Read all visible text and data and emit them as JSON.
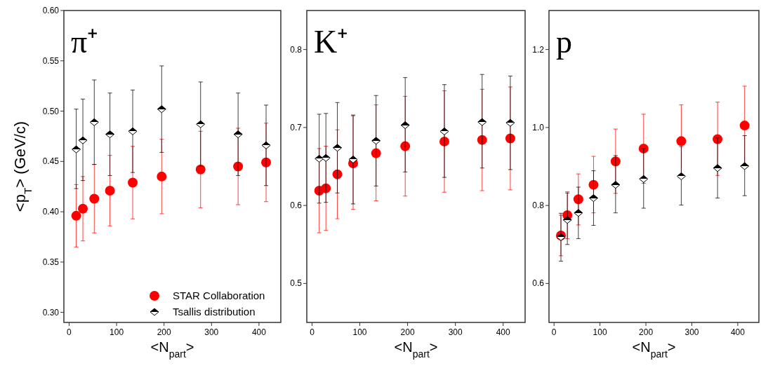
{
  "chart_data": [
    {
      "type": "scatter",
      "title": "π⁺",
      "xlabel": "<N$_{part}$>",
      "ylabel": "<p$_{T}$> (GeV/c)",
      "xlim": [
        -11,
        446
      ],
      "xticks": [
        0,
        100,
        200,
        300,
        400
      ],
      "ylim": [
        0.29,
        0.6
      ],
      "yticks": [
        {
          "value": 0.3,
          "label": "0.30"
        },
        {
          "value": 0.35,
          "label": "0.35"
        },
        {
          "value": 0.4,
          "label": "0.40"
        },
        {
          "value": 0.45,
          "label": "0.45"
        },
        {
          "value": 0.5,
          "label": "0.50"
        },
        {
          "value": 0.55,
          "label": "0.55"
        },
        {
          "value": 0.6,
          "label": "0.60"
        }
      ],
      "grid": false,
      "legend": "bottom right",
      "x": [
        15,
        29,
        53,
        86,
        134,
        195,
        277,
        356,
        415
      ],
      "series": [
        {
          "name": "STAR Collaboration",
          "color": "#ff0000",
          "marker": "circle",
          "values": [
            0.396,
            0.403,
            0.413,
            0.421,
            0.429,
            0.435,
            0.442,
            0.445,
            0.449
          ],
          "errors": [
            [
              0.365,
              0.427
            ],
            [
              0.371,
              0.435
            ],
            [
              0.379,
              0.447
            ],
            [
              0.386,
              0.456
            ],
            [
              0.393,
              0.465
            ],
            [
              0.398,
              0.472
            ],
            [
              0.404,
              0.48
            ],
            [
              0.407,
              0.483
            ],
            [
              0.41,
              0.488
            ]
          ]
        },
        {
          "name": "Tsallis distribution",
          "color": "#000000",
          "marker": "diamond",
          "values": [
            0.462,
            0.471,
            0.489,
            0.477,
            0.48,
            0.502,
            0.487,
            0.477,
            0.466
          ],
          "errors": [
            [
              0.423,
              0.502
            ],
            [
              0.431,
              0.512
            ],
            [
              0.447,
              0.531
            ],
            [
              0.436,
              0.518
            ],
            [
              0.439,
              0.521
            ],
            [
              0.459,
              0.545
            ],
            [
              0.445,
              0.529
            ],
            [
              0.436,
              0.518
            ],
            [
              0.426,
              0.506
            ]
          ]
        }
      ]
    },
    {
      "type": "scatter",
      "title": "K⁺",
      "xlabel": "<N$_{part}$>",
      "xlim": [
        -11,
        446
      ],
      "xticks": [
        0,
        100,
        200,
        300,
        400
      ],
      "ylim": [
        0.45,
        0.85
      ],
      "yticks": [
        0.5,
        0.6,
        0.7,
        0.8
      ],
      "grid": false,
      "legend": false,
      "x": [
        15,
        29,
        53,
        86,
        134,
        195,
        277,
        356,
        415
      ],
      "series": [
        {
          "color": "#ff0000",
          "marker": "circle",
          "values": [
            0.619,
            0.622,
            0.64,
            0.654,
            0.667,
            0.676,
            0.682,
            0.684,
            0.686
          ],
          "errors": [
            [
              0.565,
              0.673
            ],
            [
              0.568,
              0.676
            ],
            [
              0.583,
              0.697
            ],
            [
              0.595,
              0.715
            ],
            [
              0.606,
              0.729
            ],
            [
              0.612,
              0.74
            ],
            [
              0.617,
              0.747
            ],
            [
              0.619,
              0.749
            ],
            [
              0.62,
              0.752
            ]
          ]
        },
        {
          "color": "#000000",
          "marker": "diamond",
          "values": [
            0.66,
            0.661,
            0.674,
            0.659,
            0.683,
            0.703,
            0.695,
            0.707,
            0.706
          ],
          "errors": [
            [
              0.603,
              0.717
            ],
            [
              0.604,
              0.718
            ],
            [
              0.616,
              0.732
            ],
            [
              0.602,
              0.716
            ],
            [
              0.625,
              0.741
            ],
            [
              0.643,
              0.764
            ],
            [
              0.636,
              0.755
            ],
            [
              0.648,
              0.768
            ],
            [
              0.646,
              0.766
            ]
          ]
        }
      ]
    },
    {
      "type": "scatter",
      "title": "p",
      "xlabel": "<N$_{part}$>",
      "xlim": [
        -11,
        446
      ],
      "xticks": [
        0,
        100,
        200,
        300,
        400
      ],
      "ylim": [
        0.5,
        1.3
      ],
      "yticks": [
        0.6,
        0.8,
        {
          "value": 1.0,
          "label": "1.0"
        },
        1.2
      ],
      "grid": false,
      "legend": false,
      "x": [
        15,
        29,
        53,
        86,
        134,
        195,
        277,
        356,
        415
      ],
      "series": [
        {
          "color": "#ff0000",
          "marker": "circle",
          "values": [
            0.723,
            0.775,
            0.816,
            0.853,
            0.913,
            0.946,
            0.965,
            0.97,
            1.005
          ],
          "errors": [
            [
              0.671,
              0.775
            ],
            [
              0.715,
              0.835
            ],
            [
              0.75,
              0.881
            ],
            [
              0.781,
              0.926
            ],
            [
              0.831,
              0.996
            ],
            [
              0.857,
              1.034
            ],
            [
              0.877,
              1.058
            ],
            [
              0.877,
              1.065
            ],
            [
              0.905,
              1.106
            ]
          ]
        },
        {
          "color": "#000000",
          "marker": "diamond",
          "values": [
            0.719,
            0.763,
            0.781,
            0.819,
            0.853,
            0.868,
            0.875,
            0.896,
            0.901
          ],
          "errors": [
            [
              0.657,
              0.78
            ],
            [
              0.7,
              0.832
            ],
            [
              0.715,
              0.847
            ],
            [
              0.749,
              0.889
            ],
            [
              0.781,
              0.928
            ],
            [
              0.793,
              0.946
            ],
            [
              0.801,
              0.951
            ],
            [
              0.819,
              0.973
            ],
            [
              0.825,
              0.979
            ]
          ]
        }
      ]
    }
  ]
}
